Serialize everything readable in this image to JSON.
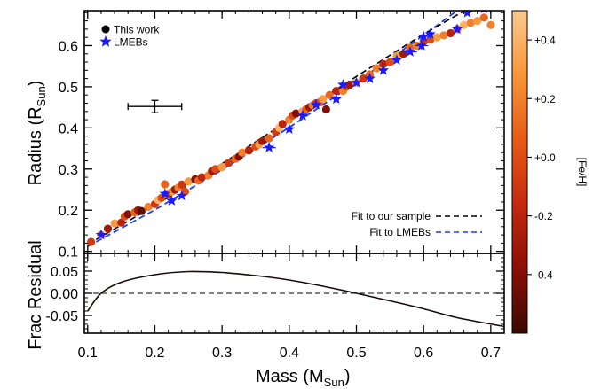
{
  "chart_data": {
    "type": "scatter",
    "x_label": "Mass (M",
    "x_label_sub": "Sun",
    "x_label_close": ")",
    "x_ticks": [
      0.1,
      0.2,
      0.3,
      0.4,
      0.5,
      0.6,
      0.7
    ],
    "x_tick_labels": [
      "0.1",
      "0.2",
      "0.3",
      "0.4",
      "0.5",
      "0.6",
      "0.7"
    ],
    "xlim": [
      0.095,
      0.72
    ],
    "top_panel": {
      "y_label": "Radius (R",
      "y_label_sub": "Sun",
      "y_label_close": ")",
      "ylim": [
        0.095,
        0.685
      ],
      "y_ticks": [
        0.1,
        0.2,
        0.3,
        0.4,
        0.5,
        0.6
      ],
      "y_tick_labels": [
        "0.1",
        "0.2",
        "0.3",
        "0.4",
        "0.5",
        "0.6"
      ],
      "legend": {
        "position": "top-left",
        "items": [
          {
            "label": "This work",
            "marker": "circle",
            "color": "#000000"
          },
          {
            "label": "LMEBs",
            "marker": "star",
            "color": "#1a1aff"
          }
        ]
      },
      "fit_legend": {
        "position": "bottom-right",
        "items": [
          {
            "label": "Fit to our sample",
            "color": "#000000"
          },
          {
            "label": "Fit to LMEBs",
            "color": "#1a3cff"
          }
        ]
      },
      "typical_error": {
        "x": 0.2,
        "y": 0.452,
        "xerr": 0.04,
        "yerr": 0.015
      },
      "fit_our_sample": [
        [
          0.1,
          0.117
        ],
        [
          0.2,
          0.211
        ],
        [
          0.3,
          0.313
        ],
        [
          0.4,
          0.419
        ],
        [
          0.5,
          0.525
        ],
        [
          0.6,
          0.628
        ],
        [
          0.72,
          0.74
        ]
      ],
      "fit_lmebs": [
        [
          0.1,
          0.112
        ],
        [
          0.2,
          0.201
        ],
        [
          0.3,
          0.298
        ],
        [
          0.4,
          0.401
        ],
        [
          0.5,
          0.511
        ],
        [
          0.6,
          0.625
        ],
        [
          0.72,
          0.77
        ]
      ],
      "this_work": [
        {
          "x": 0.105,
          "y": 0.123,
          "feh": -0.1
        },
        {
          "x": 0.12,
          "y": 0.14,
          "feh": 0.2
        },
        {
          "x": 0.13,
          "y": 0.155,
          "feh": -0.3
        },
        {
          "x": 0.14,
          "y": 0.168,
          "feh": 0.3
        },
        {
          "x": 0.15,
          "y": 0.17,
          "feh": -0.2
        },
        {
          "x": 0.155,
          "y": 0.185,
          "feh": 0.0
        },
        {
          "x": 0.16,
          "y": 0.19,
          "feh": -0.4
        },
        {
          "x": 0.17,
          "y": 0.195,
          "feh": 0.1
        },
        {
          "x": 0.175,
          "y": 0.2,
          "feh": -0.3
        },
        {
          "x": 0.18,
          "y": 0.198,
          "feh": -0.5
        },
        {
          "x": 0.19,
          "y": 0.208,
          "feh": 0.2
        },
        {
          "x": 0.2,
          "y": 0.215,
          "feh": -0.1
        },
        {
          "x": 0.205,
          "y": 0.225,
          "feh": 0.4
        },
        {
          "x": 0.21,
          "y": 0.23,
          "feh": 0.0
        },
        {
          "x": 0.215,
          "y": 0.263,
          "feh": 0.1
        },
        {
          "x": 0.22,
          "y": 0.24,
          "feh": -0.2
        },
        {
          "x": 0.225,
          "y": 0.245,
          "feh": 0.3
        },
        {
          "x": 0.23,
          "y": 0.25,
          "feh": -0.3
        },
        {
          "x": 0.235,
          "y": 0.255,
          "feh": 0.2
        },
        {
          "x": 0.24,
          "y": 0.262,
          "feh": -0.1
        },
        {
          "x": 0.245,
          "y": 0.245,
          "feh": 0.0
        },
        {
          "x": 0.25,
          "y": 0.27,
          "feh": 0.3
        },
        {
          "x": 0.26,
          "y": 0.275,
          "feh": -0.4
        },
        {
          "x": 0.265,
          "y": 0.272,
          "feh": 0.1
        },
        {
          "x": 0.27,
          "y": 0.28,
          "feh": -0.2
        },
        {
          "x": 0.28,
          "y": 0.285,
          "feh": 0.2
        },
        {
          "x": 0.285,
          "y": 0.295,
          "feh": -0.3
        },
        {
          "x": 0.29,
          "y": 0.3,
          "feh": 0.0
        },
        {
          "x": 0.3,
          "y": 0.305,
          "feh": 0.3
        },
        {
          "x": 0.31,
          "y": 0.315,
          "feh": -0.1
        },
        {
          "x": 0.32,
          "y": 0.325,
          "feh": 0.1
        },
        {
          "x": 0.325,
          "y": 0.33,
          "feh": -0.4
        },
        {
          "x": 0.33,
          "y": 0.34,
          "feh": 0.2
        },
        {
          "x": 0.34,
          "y": 0.345,
          "feh": -0.2
        },
        {
          "x": 0.35,
          "y": 0.355,
          "feh": 0.0
        },
        {
          "x": 0.355,
          "y": 0.36,
          "feh": 0.3
        },
        {
          "x": 0.36,
          "y": 0.368,
          "feh": -0.3
        },
        {
          "x": 0.37,
          "y": 0.375,
          "feh": 0.1
        },
        {
          "x": 0.38,
          "y": 0.39,
          "feh": -0.1
        },
        {
          "x": 0.385,
          "y": 0.4,
          "feh": 0.4
        },
        {
          "x": 0.39,
          "y": 0.41,
          "feh": -0.2
        },
        {
          "x": 0.4,
          "y": 0.42,
          "feh": 0.2
        },
        {
          "x": 0.405,
          "y": 0.43,
          "feh": 0.0
        },
        {
          "x": 0.41,
          "y": 0.435,
          "feh": -0.4
        },
        {
          "x": 0.42,
          "y": 0.44,
          "feh": 0.3
        },
        {
          "x": 0.425,
          "y": 0.445,
          "feh": 0.1
        },
        {
          "x": 0.43,
          "y": 0.45,
          "feh": -0.3
        },
        {
          "x": 0.435,
          "y": 0.455,
          "feh": 0.2
        },
        {
          "x": 0.44,
          "y": 0.46,
          "feh": -0.1
        },
        {
          "x": 0.445,
          "y": 0.462,
          "feh": 0.0
        },
        {
          "x": 0.45,
          "y": 0.47,
          "feh": 0.3
        },
        {
          "x": 0.455,
          "y": 0.445,
          "feh": -0.4
        },
        {
          "x": 0.46,
          "y": 0.48,
          "feh": 0.1
        },
        {
          "x": 0.47,
          "y": 0.49,
          "feh": -0.2
        },
        {
          "x": 0.48,
          "y": 0.49,
          "feh": 0.2
        },
        {
          "x": 0.485,
          "y": 0.5,
          "feh": 0.0
        },
        {
          "x": 0.49,
          "y": 0.505,
          "feh": -0.3
        },
        {
          "x": 0.5,
          "y": 0.51,
          "feh": 0.3
        },
        {
          "x": 0.51,
          "y": 0.52,
          "feh": -0.1
        },
        {
          "x": 0.52,
          "y": 0.53,
          "feh": 0.1
        },
        {
          "x": 0.53,
          "y": 0.545,
          "feh": 0.2
        },
        {
          "x": 0.54,
          "y": 0.555,
          "feh": -0.2
        },
        {
          "x": 0.55,
          "y": 0.56,
          "feh": 0.0
        },
        {
          "x": 0.56,
          "y": 0.575,
          "feh": 0.3
        },
        {
          "x": 0.57,
          "y": 0.58,
          "feh": -0.3
        },
        {
          "x": 0.58,
          "y": 0.595,
          "feh": 0.1
        },
        {
          "x": 0.59,
          "y": 0.6,
          "feh": 0.2
        },
        {
          "x": 0.6,
          "y": 0.61,
          "feh": -0.1
        },
        {
          "x": 0.61,
          "y": 0.615,
          "feh": 0.0
        },
        {
          "x": 0.62,
          "y": 0.62,
          "feh": 0.3
        },
        {
          "x": 0.63,
          "y": 0.625,
          "feh": 0.2
        },
        {
          "x": 0.64,
          "y": 0.63,
          "feh": -0.2
        },
        {
          "x": 0.65,
          "y": 0.64,
          "feh": 0.1
        },
        {
          "x": 0.66,
          "y": 0.65,
          "feh": 0.4
        },
        {
          "x": 0.67,
          "y": 0.655,
          "feh": 0.2
        },
        {
          "x": 0.68,
          "y": 0.66,
          "feh": 0.3
        },
        {
          "x": 0.69,
          "y": 0.668,
          "feh": 0.1
        },
        {
          "x": 0.7,
          "y": 0.65,
          "feh": 0.2
        }
      ],
      "lmebs": [
        {
          "x": 0.12,
          "y": 0.14,
          "xerr": 0.005,
          "yerr": 0.004
        },
        {
          "x": 0.215,
          "y": 0.24,
          "xerr": 0.005,
          "yerr": 0.004
        },
        {
          "x": 0.225,
          "y": 0.223,
          "xerr": 0.005,
          "yerr": 0.004
        },
        {
          "x": 0.24,
          "y": 0.235,
          "xerr": 0.005,
          "yerr": 0.004
        },
        {
          "x": 0.37,
          "y": 0.352,
          "xerr": 0.01,
          "yerr": 0.005
        },
        {
          "x": 0.4,
          "y": 0.397,
          "xerr": 0.005,
          "yerr": 0.005
        },
        {
          "x": 0.42,
          "y": 0.43,
          "xerr": 0.005,
          "yerr": 0.005
        },
        {
          "x": 0.44,
          "y": 0.456,
          "xerr": 0.005,
          "yerr": 0.005
        },
        {
          "x": 0.47,
          "y": 0.47,
          "xerr": 0.005,
          "yerr": 0.005
        },
        {
          "x": 0.48,
          "y": 0.505,
          "xerr": 0.005,
          "yerr": 0.005
        },
        {
          "x": 0.5,
          "y": 0.51,
          "xerr": 0.005,
          "yerr": 0.005
        },
        {
          "x": 0.52,
          "y": 0.52,
          "xerr": 0.005,
          "yerr": 0.005
        },
        {
          "x": 0.54,
          "y": 0.54,
          "xerr": 0.005,
          "yerr": 0.005
        },
        {
          "x": 0.56,
          "y": 0.565,
          "xerr": 0.005,
          "yerr": 0.005
        },
        {
          "x": 0.58,
          "y": 0.585,
          "xerr": 0.01,
          "yerr": 0.005
        },
        {
          "x": 0.597,
          "y": 0.6,
          "xerr": 0.01,
          "yerr": 0.01
        },
        {
          "x": 0.6,
          "y": 0.622,
          "xerr": 0.005,
          "yerr": 0.012
        },
        {
          "x": 0.61,
          "y": 0.628,
          "xerr": 0.005,
          "yerr": 0.012
        },
        {
          "x": 0.65,
          "y": 0.64,
          "xerr": 0.005,
          "yerr": 0.005
        },
        {
          "x": 0.665,
          "y": 0.68,
          "xerr": 0.005,
          "yerr": 0.005
        },
        {
          "x": 0.69,
          "y": 0.69,
          "xerr": 0.005,
          "yerr": 0.005
        }
      ]
    },
    "bottom_panel": {
      "y_label": "Frac Residual",
      "ylim": [
        -0.09,
        0.09
      ],
      "y_ticks": [
        0.05,
        0.0,
        -0.05
      ],
      "y_tick_labels": [
        "0.05",
        "0.00",
        "-0.05"
      ],
      "zero_line": 0.0,
      "residual_curve": [
        [
          0.1,
          -0.04
        ],
        [
          0.12,
          0.0
        ],
        [
          0.15,
          0.025
        ],
        [
          0.2,
          0.042
        ],
        [
          0.25,
          0.049
        ],
        [
          0.3,
          0.047
        ],
        [
          0.35,
          0.04
        ],
        [
          0.4,
          0.03
        ],
        [
          0.45,
          0.016
        ],
        [
          0.5,
          0.0
        ],
        [
          0.55,
          -0.017
        ],
        [
          0.6,
          -0.035
        ],
        [
          0.65,
          -0.055
        ],
        [
          0.72,
          -0.075
        ]
      ]
    },
    "colorbar": {
      "label": "[Fe/H]",
      "range": [
        -0.6,
        0.5
      ],
      "ticks": [
        0.4,
        0.2,
        0.0,
        -0.2,
        -0.4
      ],
      "tick_labels": [
        "+0.4",
        "+0.2",
        "+0.0",
        "-0.2",
        "-0.4"
      ],
      "colors": [
        "#3a0a02",
        "#8a0f05",
        "#c32a0e",
        "#e65a18",
        "#f7963a",
        "#fbc98f"
      ]
    }
  }
}
